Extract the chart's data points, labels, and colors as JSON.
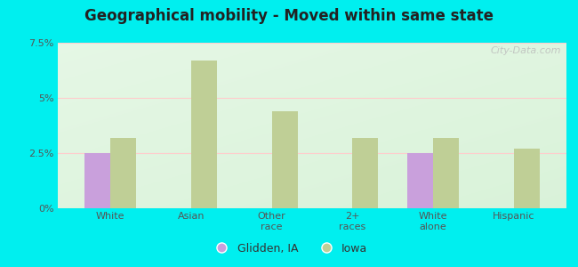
{
  "title": "Geographical mobility - Moved within same state",
  "categories": [
    "White",
    "Asian",
    "Other\nrace",
    "2+\nraces",
    "White\nalone",
    "Hispanic"
  ],
  "glidden_values": [
    2.5,
    0,
    0,
    0,
    2.5,
    0
  ],
  "iowa_values": [
    3.2,
    6.7,
    4.4,
    3.2,
    3.2,
    2.7
  ],
  "glidden_color": "#c9a0dc",
  "iowa_color": "#bfcf96",
  "ylim": [
    0,
    7.5
  ],
  "yticks": [
    0,
    2.5,
    5.0,
    7.5
  ],
  "ytick_labels": [
    "0%",
    "2.5%",
    "5%",
    "7.5%"
  ],
  "outer_background": "#00efef",
  "bar_width": 0.32,
  "legend_labels": [
    "Glidden, IA",
    "Iowa"
  ],
  "watermark": "City-Data.com"
}
